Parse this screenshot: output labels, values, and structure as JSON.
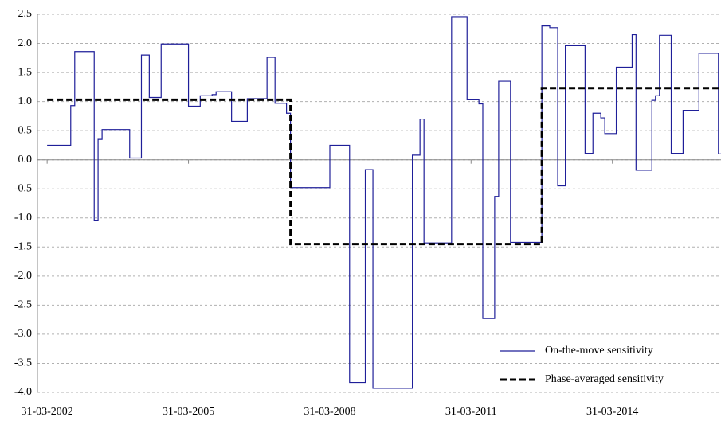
{
  "chart_data": {
    "type": "line",
    "step": "post",
    "xlim": [
      "15-01-2002",
      "20-07-2016"
    ],
    "xticks": [
      "31-03-2002",
      "31-03-2005",
      "31-03-2008",
      "31-03-2011",
      "31-03-2014"
    ],
    "ylim": [
      -4,
      2.5
    ],
    "yticks": [
      {
        "value": -4,
        "label": "-4.0"
      },
      -3.5,
      {
        "value": -3,
        "label": "-3.0"
      },
      -2.5,
      {
        "value": -2,
        "label": "-2.0"
      },
      -1.5,
      {
        "value": -1,
        "label": "-1.0"
      },
      -0.5,
      {
        "value": 0,
        "label": "0.0"
      },
      0.5,
      {
        "value": 1,
        "label": "1.0"
      },
      1.5,
      {
        "value": 2,
        "label": "2.0"
      },
      2.5
    ],
    "grid": true,
    "legend": "lower right",
    "series": [
      {
        "name": "On-the-move sensitivity",
        "color": "#1f1f99",
        "dash": false,
        "x": [
          "31-03-2002",
          "30-09-2002",
          "31-10-2002",
          "31-03-2003",
          "30-04-2003",
          "31-05-2003",
          "31-12-2003",
          "31-03-2004",
          "31-05-2004",
          "31-08-2004",
          "31-03-2005",
          "30-06-2005",
          "30-09-2005",
          "31-10-2005",
          "28-02-2006",
          "30-06-2006",
          "30-11-2006",
          "31-01-2007",
          "30-04-2007",
          "31-05-2007",
          "31-03-2008",
          "31-08-2008",
          "31-12-2008",
          "28-02-2009",
          "31-12-2009",
          "28-02-2010",
          "31-03-2010",
          "31-10-2010",
          "28-02-2011",
          "31-05-2011",
          "30-06-2011",
          "30-09-2011",
          "31-10-2011",
          "31-01-2012",
          "30-09-2012",
          "30-11-2012",
          "31-01-2013",
          "31-03-2013",
          "31-08-2013",
          "31-10-2013",
          "31-12-2013",
          "31-01-2014",
          "30-04-2014",
          "31-08-2014",
          "30-09-2014",
          "31-01-2015",
          "28-02-2015",
          "31-03-2015",
          "30-06-2015",
          "30-09-2015",
          "31-01-2016",
          "30-06-2016"
        ],
        "values": [
          0.25,
          0.93,
          1.86,
          -1.05,
          0.35,
          0.52,
          0.03,
          1.8,
          1.07,
          1.99,
          0.92,
          1.1,
          1.12,
          1.17,
          0.66,
          1.05,
          1.76,
          0.97,
          0.8,
          -0.48,
          0.25,
          -3.83,
          -0.17,
          -3.93,
          0.08,
          0.7,
          -1.43,
          2.46,
          1.03,
          0.96,
          -2.73,
          -0.63,
          1.35,
          -1.42,
          2.3,
          2.27,
          -0.45,
          1.96,
          0.11,
          0.8,
          0.72,
          0.45,
          1.59,
          2.15,
          -0.18,
          1.02,
          1.1,
          2.14,
          0.11,
          0.85,
          1.83,
          0.1
        ]
      },
      {
        "name": "Phase-averaged sensitivity",
        "color": "#000000",
        "dash": true,
        "x": [
          "31-03-2002",
          "31-05-2007",
          "30-09-2012"
        ],
        "values": [
          1.03,
          -1.45,
          1.23
        ]
      }
    ]
  }
}
